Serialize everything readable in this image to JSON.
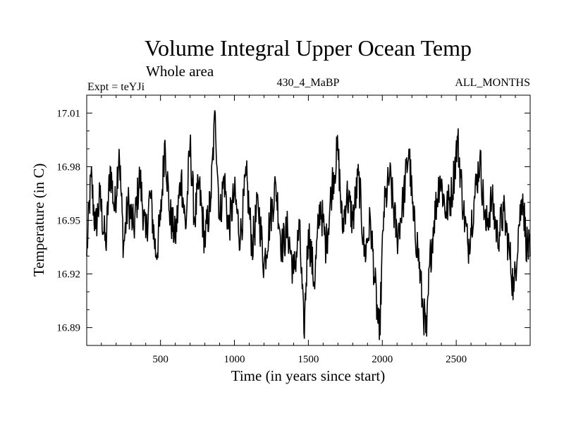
{
  "chart_data": {
    "type": "line",
    "title": "Volume Integral Upper Ocean Temp",
    "subtitle": "Whole area",
    "expt_label": "Expt = teYJi",
    "run_label": "430_4_MaBP",
    "months_label": "ALL_MONTHS",
    "xlabel": "Time (in years since start)",
    "ylabel": "Temperature (in C)",
    "xlim": [
      1,
      3000
    ],
    "ylim": [
      16.88,
      17.02
    ],
    "x_ticks": [
      500,
      1000,
      1500,
      2000,
      2500
    ],
    "x_tick_labels": [
      "500",
      "1000",
      "1500",
      "2000",
      "2500"
    ],
    "y_ticks": [
      16.89,
      16.92,
      16.95,
      16.98,
      17.01
    ],
    "y_tick_labels": [
      "16.89",
      "16.92",
      "16.95",
      "16.98",
      "17.01"
    ],
    "grid": false,
    "color": "#000000",
    "series": [
      {
        "name": "Volume integral upper ocean temperature",
        "x": [
          1,
          30,
          60,
          90,
          130,
          160,
          190,
          220,
          250,
          280,
          320,
          360,
          400,
          430,
          470,
          500,
          530,
          560,
          600,
          640,
          670,
          700,
          730,
          760,
          800,
          840,
          870,
          900,
          930,
          960,
          1000,
          1040,
          1080,
          1120,
          1160,
          1200,
          1240,
          1280,
          1320,
          1360,
          1400,
          1440,
          1470,
          1500,
          1540,
          1580,
          1620,
          1660,
          1700,
          1730,
          1760,
          1800,
          1840,
          1880,
          1920,
          1950,
          1980,
          2010,
          2050,
          2100,
          2140,
          2180,
          2210,
          2240,
          2270,
          2300,
          2320,
          2350,
          2390,
          2430,
          2470,
          2510,
          2550,
          2580,
          2620,
          2660,
          2700,
          2740,
          2780,
          2820,
          2860,
          2890,
          2920,
          2950,
          2970,
          3000
        ],
        "y": [
          16.93,
          16.975,
          16.945,
          16.963,
          16.935,
          16.98,
          16.955,
          16.99,
          16.935,
          16.96,
          16.945,
          16.975,
          16.94,
          16.965,
          16.93,
          16.95,
          16.995,
          16.955,
          16.94,
          16.975,
          16.945,
          16.993,
          16.95,
          16.97,
          16.938,
          16.962,
          17.01,
          16.95,
          16.975,
          16.945,
          16.965,
          16.94,
          16.975,
          16.935,
          16.96,
          16.925,
          16.95,
          16.97,
          16.935,
          16.945,
          16.92,
          16.945,
          16.887,
          16.945,
          16.915,
          16.96,
          16.935,
          16.97,
          16.99,
          16.945,
          16.965,
          16.95,
          16.975,
          16.93,
          16.95,
          16.915,
          16.883,
          16.955,
          16.975,
          16.94,
          16.96,
          16.99,
          16.95,
          16.935,
          16.905,
          16.885,
          16.925,
          16.95,
          16.975,
          16.955,
          16.965,
          16.995,
          16.955,
          16.935,
          16.96,
          16.985,
          16.945,
          16.962,
          16.94,
          16.955,
          16.932,
          16.91,
          16.945,
          16.965,
          16.94,
          16.93
        ]
      }
    ]
  }
}
